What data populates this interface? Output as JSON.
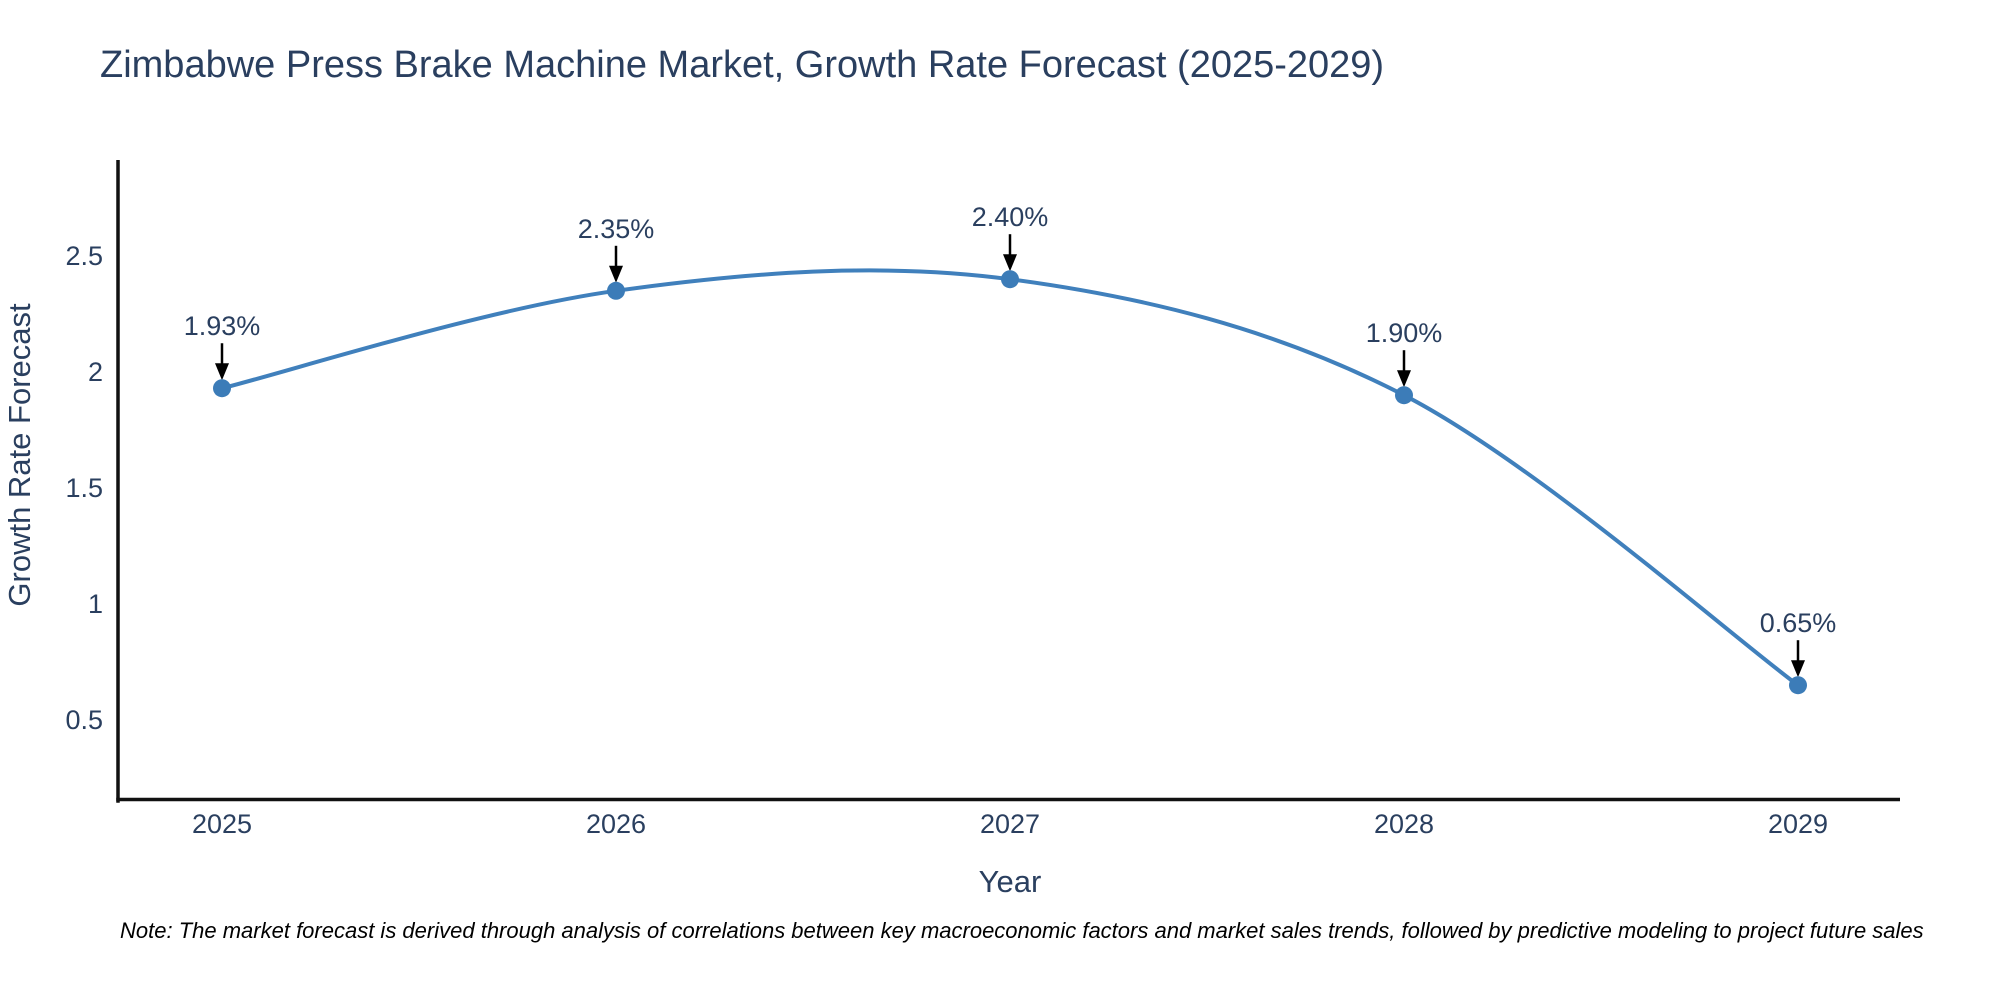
{
  "note": "Note: The market forecast is derived through analysis of correlations between key macroeconomic factors and market sales trends, followed by predictive modeling to project future sales",
  "chart_data": {
    "type": "line",
    "line_shape": "spline",
    "title": "Zimbabwe Press Brake Machine Market, Growth Rate Forecast (2025-2029)",
    "xlabel": "Year",
    "ylabel": "Growth Rate Forecast",
    "x": [
      2025,
      2026,
      2027,
      2028,
      2029
    ],
    "values": [
      1.93,
      2.35,
      2.4,
      1.9,
      0.65
    ],
    "point_labels": [
      "1.93%",
      "2.35%",
      "2.40%",
      "1.90%",
      "0.65%"
    ],
    "x_ticks": [
      "2025",
      "2026",
      "2027",
      "2028",
      "2029"
    ],
    "y_ticks": [
      0.5,
      1,
      1.5,
      2,
      2.5
    ],
    "xlim": [
      2024.74,
      2029.26
    ],
    "ylim": [
      0.15,
      2.91
    ],
    "grid": false,
    "legend": "none",
    "markers": true,
    "annotations": "arrow labels above each point",
    "colors": {
      "line": "#4080bc",
      "marker": "#3c7cb8",
      "text": "#2a3f5f",
      "axis": "#111111",
      "arrow": "#000000",
      "note_text": "#000000",
      "background": "#ffffff"
    }
  }
}
